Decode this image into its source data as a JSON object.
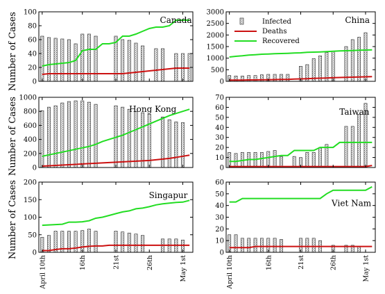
{
  "figure": {
    "ylabel": "Number of Cases",
    "xticks": [
      "April 10th",
      "16th",
      "21st",
      "26th",
      "May 1st"
    ],
    "legend": {
      "infected": "Infected",
      "deaths": "Deaths",
      "recovered": "Recovered"
    },
    "colors": {
      "bar_fill": "#e8e8e8",
      "bar_edge": "#222222",
      "deaths": "#cc1111",
      "recovered": "#22dd22",
      "axis": "#000000"
    }
  },
  "chart_data": [
    {
      "type": "bar",
      "title": "Canada",
      "ylim": [
        0,
        100
      ],
      "yticks": [
        0,
        20,
        40,
        60,
        80,
        100
      ],
      "x": [
        10,
        11,
        12,
        13,
        14,
        15,
        16,
        17,
        18,
        19,
        20,
        21,
        22,
        23,
        24,
        25,
        26,
        27,
        28,
        29,
        30,
        31,
        32
      ],
      "series": [
        {
          "name": "Infected",
          "values": [
            65,
            63,
            62,
            61,
            60,
            54,
            68,
            68,
            65,
            null,
            null,
            65,
            60,
            59,
            55,
            51,
            null,
            47,
            47,
            null,
            40,
            40,
            40
          ]
        },
        {
          "name": "Deaths",
          "values": [
            10,
            11,
            11,
            11,
            11,
            11,
            11,
            11,
            11,
            11,
            11,
            11,
            11,
            12,
            13,
            14,
            15,
            16,
            17,
            18,
            19,
            19,
            19
          ]
        },
        {
          "name": "Recovered",
          "values": [
            22,
            24,
            25,
            26,
            27,
            30,
            44,
            46,
            46,
            54,
            54,
            56,
            65,
            65,
            68,
            72,
            76,
            78,
            78,
            80,
            88,
            88,
            88
          ]
        }
      ]
    },
    {
      "type": "bar",
      "title": "China",
      "ylim": [
        0,
        3000
      ],
      "yticks": [
        0,
        500,
        1000,
        1500,
        2000,
        2500,
        3000
      ],
      "x": [
        10,
        11,
        12,
        13,
        14,
        15,
        16,
        17,
        18,
        19,
        20,
        21,
        22,
        23,
        24,
        25,
        26,
        27,
        28,
        29,
        30,
        31,
        32
      ],
      "series": [
        {
          "name": "Infected",
          "values": [
            250,
            230,
            230,
            250,
            250,
            280,
            300,
            300,
            300,
            300,
            null,
            650,
            720,
            980,
            1100,
            1250,
            1300,
            null,
            1500,
            1800,
            1900,
            2100,
            null
          ]
        },
        {
          "name": "Deaths",
          "values": [
            50,
            50,
            55,
            60,
            60,
            65,
            70,
            75,
            80,
            85,
            95,
            105,
            115,
            125,
            135,
            145,
            155,
            165,
            175,
            180,
            190,
            195,
            200
          ]
        },
        {
          "name": "Recovered",
          "values": [
            1050,
            1080,
            1100,
            1130,
            1150,
            1170,
            1180,
            1190,
            1200,
            1210,
            1220,
            1230,
            1250,
            1260,
            1270,
            1280,
            1300,
            1310,
            1320,
            1330,
            1340,
            1350,
            1360
          ]
        }
      ]
    },
    {
      "type": "bar",
      "title": "Hong Kong",
      "ylim": [
        0,
        1000
      ],
      "yticks": [
        0,
        200,
        400,
        600,
        800,
        1000
      ],
      "x": [
        10,
        11,
        12,
        13,
        14,
        15,
        16,
        17,
        18,
        19,
        20,
        21,
        22,
        23,
        24,
        25,
        26,
        27,
        28,
        29,
        30,
        31,
        32
      ],
      "series": [
        {
          "name": "Infected",
          "values": [
            810,
            860,
            880,
            920,
            940,
            950,
            950,
            930,
            900,
            null,
            null,
            880,
            860,
            830,
            800,
            780,
            760,
            null,
            720,
            680,
            650,
            640,
            null
          ]
        },
        {
          "name": "Deaths",
          "values": [
            20,
            25,
            30,
            35,
            40,
            45,
            50,
            55,
            60,
            65,
            70,
            75,
            80,
            85,
            90,
            95,
            100,
            110,
            120,
            130,
            145,
            160,
            175
          ]
        },
        {
          "name": "Recovered",
          "values": [
            160,
            180,
            200,
            220,
            240,
            260,
            280,
            300,
            330,
            370,
            400,
            430,
            460,
            500,
            540,
            580,
            620,
            660,
            700,
            740,
            770,
            800,
            830
          ]
        }
      ]
    },
    {
      "type": "bar",
      "title": "Taiwan",
      "ylim": [
        0,
        70
      ],
      "yticks": [
        0,
        10,
        20,
        30,
        40,
        50,
        60,
        70
      ],
      "x": [
        10,
        11,
        12,
        13,
        14,
        15,
        16,
        17,
        18,
        19,
        20,
        21,
        22,
        23,
        24,
        25,
        26,
        27,
        28,
        29,
        30,
        31,
        32
      ],
      "series": [
        {
          "name": "Infected",
          "values": [
            15,
            14,
            15,
            15,
            15,
            15,
            16,
            17,
            11,
            null,
            11,
            10,
            15,
            15,
            20,
            23,
            null,
            null,
            41,
            41,
            53,
            64,
            null
          ]
        },
        {
          "name": "Deaths",
          "values": [
            1,
            1,
            1,
            1,
            1,
            1,
            1,
            1,
            1,
            1,
            1,
            1,
            1,
            1,
            1,
            1,
            1,
            1,
            1,
            1,
            1,
            1,
            2
          ]
        },
        {
          "name": "Recovered",
          "values": [
            6,
            6,
            7,
            8,
            8,
            9,
            10,
            11,
            12,
            12,
            17,
            17,
            17,
            17,
            20,
            20,
            20,
            25,
            25,
            25,
            25,
            25,
            25
          ]
        }
      ]
    },
    {
      "type": "bar",
      "title": "Singapur",
      "ylim": [
        0,
        200
      ],
      "yticks": [
        0,
        50,
        100,
        150,
        200
      ],
      "x": [
        10,
        11,
        12,
        13,
        14,
        15,
        16,
        17,
        18,
        19,
        20,
        21,
        22,
        23,
        24,
        25,
        26,
        27,
        28,
        29,
        30,
        31,
        32
      ],
      "series": [
        {
          "name": "Infected",
          "values": [
            43,
            48,
            60,
            60,
            60,
            60,
            62,
            66,
            60,
            null,
            null,
            60,
            58,
            55,
            52,
            48,
            null,
            null,
            38,
            38,
            38,
            35,
            null
          ]
        },
        {
          "name": "Deaths",
          "values": [
            5,
            5,
            8,
            10,
            10,
            12,
            15,
            17,
            18,
            18,
            20,
            20,
            20,
            20,
            20,
            20,
            20,
            20,
            20,
            20,
            20,
            20,
            20
          ]
        },
        {
          "name": "Recovered",
          "values": [
            77,
            78,
            79,
            80,
            86,
            86,
            87,
            90,
            97,
            100,
            105,
            110,
            115,
            118,
            124,
            126,
            130,
            135,
            138,
            140,
            142,
            143,
            148
          ]
        }
      ]
    },
    {
      "type": "bar",
      "title": "Viet Nam",
      "ylim": [
        0,
        60
      ],
      "yticks": [
        0,
        10,
        20,
        30,
        40,
        50,
        60
      ],
      "x": [
        10,
        11,
        12,
        13,
        14,
        15,
        16,
        17,
        18,
        19,
        20,
        21,
        22,
        23,
        24,
        25,
        26,
        27,
        28,
        29,
        30,
        31,
        32
      ],
      "series": [
        {
          "name": "Infected",
          "values": [
            15,
            15,
            12,
            12,
            12,
            12,
            12,
            12,
            11,
            null,
            null,
            12,
            12,
            12,
            10,
            null,
            6,
            null,
            6,
            6,
            5,
            null,
            null
          ]
        },
        {
          "name": "Deaths",
          "values": [
            4,
            4,
            4,
            4,
            5,
            5,
            5,
            5,
            5,
            5,
            5,
            5,
            5,
            5,
            5,
            5,
            5,
            5,
            5,
            5,
            5,
            5,
            5
          ]
        },
        {
          "name": "Recovered",
          "values": [
            43,
            43,
            46,
            46,
            46,
            46,
            46,
            46,
            46,
            46,
            46,
            46,
            46,
            46,
            46,
            50,
            53,
            53,
            53,
            53,
            53,
            53,
            56
          ]
        }
      ]
    }
  ]
}
